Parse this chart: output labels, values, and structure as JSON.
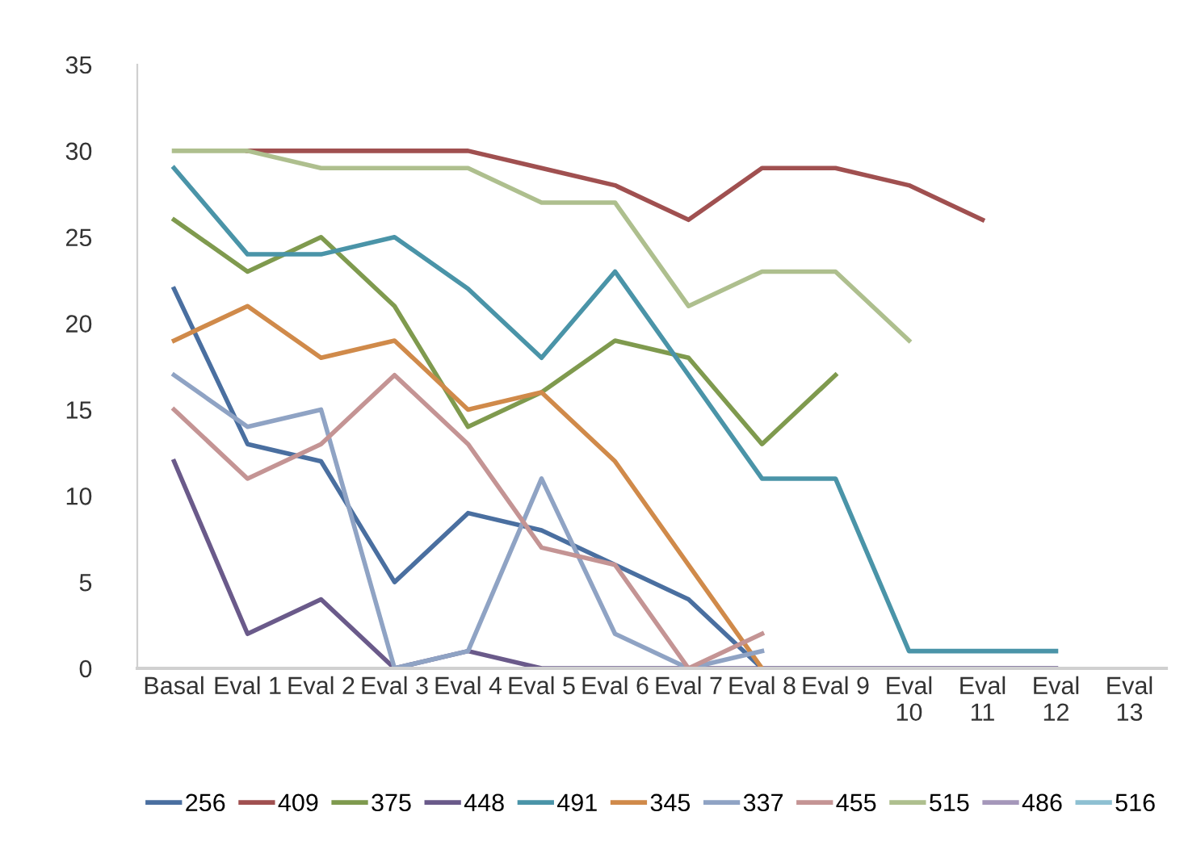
{
  "chart_data": {
    "type": "line",
    "categories": [
      "Basal",
      "Eval 1",
      "Eval 2",
      "Eval 3",
      "Eval 4",
      "Eval 5",
      "Eval 6",
      "Eval 7",
      "Eval 8",
      "Eval 9",
      "Eval 10",
      "Eval 11",
      "Eval 12",
      "Eval 13"
    ],
    "series": [
      {
        "name": "256",
        "color": "#4a6fa0",
        "values": [
          22,
          13,
          12,
          5,
          9,
          8,
          6,
          4,
          0,
          null,
          null,
          null,
          null,
          null
        ]
      },
      {
        "name": "409",
        "color": "#a05050",
        "values": [
          null,
          30,
          30,
          30,
          30,
          29,
          28,
          26,
          29,
          29,
          28,
          26,
          null,
          null
        ]
      },
      {
        "name": "375",
        "color": "#7f9a4e",
        "values": [
          26,
          23,
          25,
          21,
          14,
          16,
          19,
          18,
          13,
          17,
          null,
          null,
          null,
          null
        ]
      },
      {
        "name": "448",
        "color": "#6a5a8a",
        "values": [
          12,
          2,
          4,
          0,
          1,
          0,
          0,
          0,
          0,
          0,
          0,
          0,
          0,
          null
        ]
      },
      {
        "name": "491",
        "color": "#4a94a8",
        "values": [
          29,
          24,
          24,
          25,
          22,
          18,
          23,
          17,
          11,
          11,
          1,
          1,
          1,
          null
        ]
      },
      {
        "name": "345",
        "color": "#d08a4a",
        "values": [
          19,
          21,
          18,
          19,
          15,
          16,
          12,
          6,
          0,
          null,
          null,
          null,
          null,
          null
        ]
      },
      {
        "name": "337",
        "color": "#8fa3c4",
        "values": [
          17,
          14,
          15,
          0,
          1,
          11,
          2,
          0,
          1,
          null,
          null,
          null,
          null,
          null
        ]
      },
      {
        "name": "455",
        "color": "#c49494",
        "values": [
          15,
          11,
          13,
          17,
          13,
          7,
          6,
          0,
          2,
          null,
          null,
          null,
          null,
          null
        ]
      },
      {
        "name": "515",
        "color": "#aebf8e",
        "values": [
          30,
          30,
          29,
          29,
          29,
          27,
          27,
          21,
          23,
          23,
          19,
          null,
          null,
          null
        ]
      },
      {
        "name": "486",
        "color": "#a597ba",
        "values": [
          null,
          null,
          null,
          null,
          null,
          null,
          null,
          null,
          null,
          null,
          null,
          null,
          null,
          null
        ]
      },
      {
        "name": "516",
        "color": "#8ec0d2",
        "values": [
          null,
          null,
          null,
          null,
          null,
          null,
          null,
          null,
          null,
          null,
          null,
          null,
          null,
          null
        ]
      }
    ],
    "ylim": [
      0,
      35
    ],
    "yticks": [
      0,
      5,
      10,
      15,
      20,
      25,
      30,
      35
    ],
    "grid": false,
    "legend": "bottom",
    "marker": "none",
    "line_style": "solid"
  }
}
